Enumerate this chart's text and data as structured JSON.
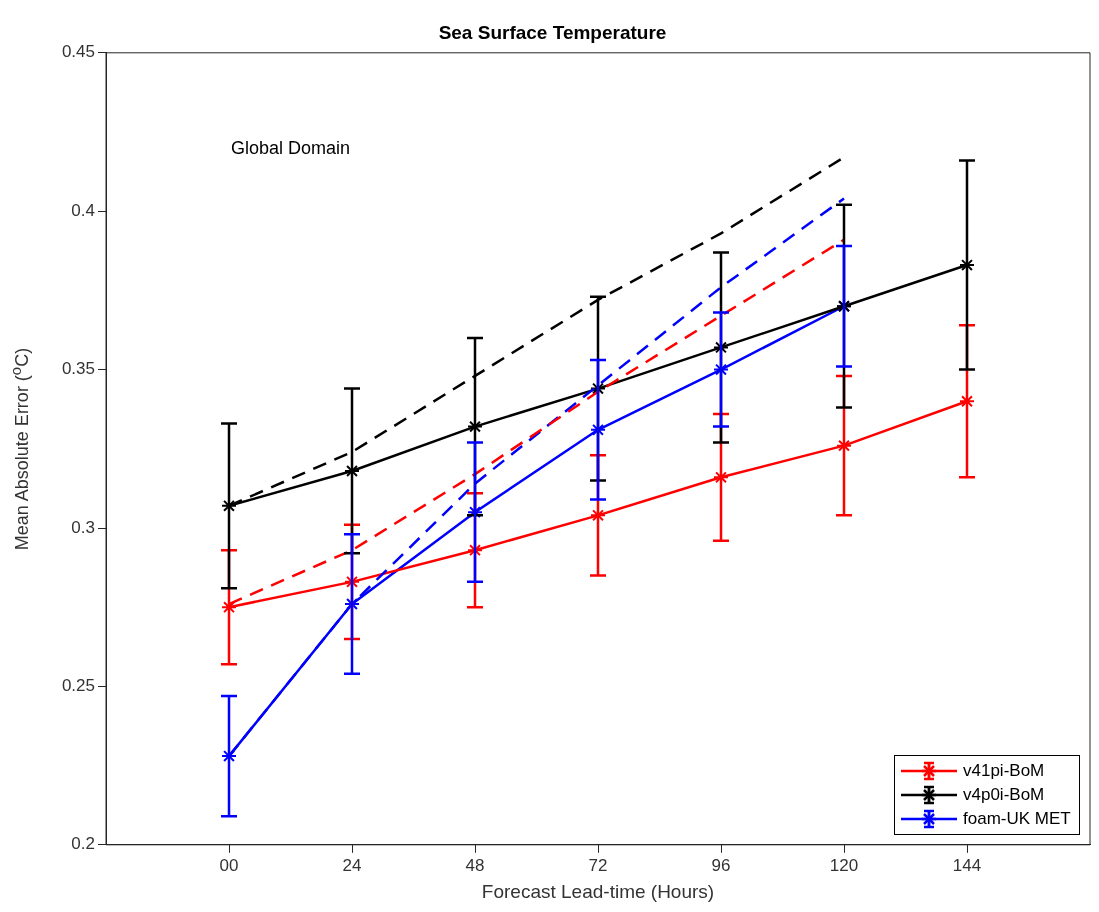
{
  "chart_data": {
    "type": "line",
    "title": "Sea Surface Temperature",
    "xlabel": "Forecast Lead-time (Hours)",
    "ylabel": "Mean Absolute Error ($^{o}$C)",
    "x": [
      0,
      24,
      48,
      72,
      96,
      120,
      144
    ],
    "xlim": [
      -24,
      168
    ],
    "xticks": [
      {
        "value": 0,
        "label": "00"
      },
      24,
      48,
      72,
      96,
      120,
      144
    ],
    "ylim": [
      0.2,
      0.45
    ],
    "yticks": [
      0.2,
      0.25,
      0.3,
      0.35,
      0.4,
      0.45
    ],
    "legend": "bottom right",
    "annotations": [
      "Global Domain"
    ],
    "series": [
      {
        "color": "#000000",
        "x": [
          0,
          24,
          48,
          72,
          96,
          120
        ],
        "values": [
          0.307,
          0.324,
          0.348,
          0.372,
          0.393,
          0.417
        ],
        "marker": "none",
        "line_style": "dashed"
      },
      {
        "color": "#ff0000",
        "x": [
          0,
          24,
          48,
          72,
          96,
          120
        ],
        "values": [
          0.276,
          0.293,
          0.317,
          0.343,
          0.367,
          0.391
        ],
        "marker": "none",
        "line_style": "dashed"
      },
      {
        "color": "#0000ff",
        "x": [
          0,
          24,
          48,
          72,
          96,
          120
        ],
        "values": [
          0.228,
          0.276,
          0.314,
          0.345,
          0.376,
          0.404
        ],
        "marker": "none",
        "line_style": "dashed"
      },
      {
        "name": "v41pi-BoM",
        "color": "#ff0000",
        "values": [
          0.275,
          0.283,
          0.293,
          0.304,
          0.316,
          0.326,
          0.34
        ],
        "errors": [
          0.018,
          0.018,
          0.018,
          0.019,
          0.02,
          0.022,
          0.024
        ],
        "marker": "cross",
        "line_style": "solid"
      },
      {
        "name": "v4p0i-BoM",
        "color": "#000000",
        "values": [
          0.307,
          0.318,
          0.332,
          0.344,
          0.357,
          0.37,
          0.383
        ],
        "errors": [
          0.026,
          0.026,
          0.028,
          0.029,
          0.03,
          0.032,
          0.033
        ],
        "marker": "cross",
        "line_style": "solid"
      },
      {
        "name": "foam-UK MET",
        "color": "#0000ff",
        "x": [
          0,
          24,
          48,
          72,
          96,
          120
        ],
        "values": [
          0.228,
          0.276,
          0.305,
          0.331,
          0.35,
          0.37
        ],
        "errors": [
          0.019,
          0.022,
          0.022,
          0.022,
          0.018,
          0.019
        ],
        "marker": "cross",
        "line_style": "solid"
      }
    ]
  }
}
